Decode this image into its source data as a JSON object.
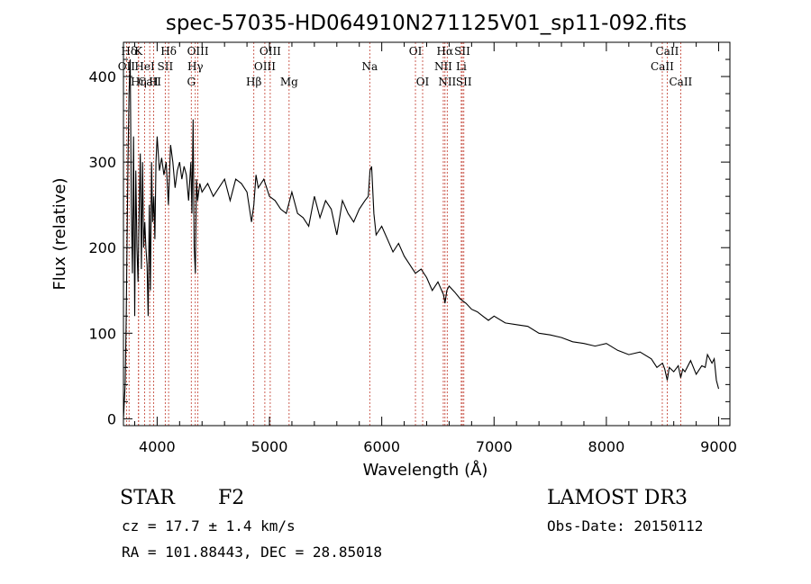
{
  "chart_data": {
    "type": "line",
    "title": "spec-57035-HD064910N271125V01_sp11-092.fits",
    "xlabel": "Wavelength (Å)",
    "ylabel": "Flux (relative)",
    "xlim": [
      3700,
      9100
    ],
    "ylim": [
      -8,
      440
    ],
    "xticks": [
      4000,
      5000,
      6000,
      7000,
      8000,
      9000
    ],
    "yticks": [
      0,
      100,
      200,
      300,
      400
    ],
    "series": [
      {
        "name": "flux",
        "x": [
          3700,
          3715,
          3725,
          3740,
          3750,
          3760,
          3770,
          3780,
          3790,
          3800,
          3810,
          3820,
          3830,
          3840,
          3850,
          3860,
          3870,
          3880,
          3890,
          3900,
          3910,
          3920,
          3930,
          3940,
          3950,
          3960,
          3970,
          3980,
          3990,
          4000,
          4020,
          4040,
          4060,
          4080,
          4100,
          4120,
          4140,
          4160,
          4180,
          4200,
          4220,
          4240,
          4260,
          4280,
          4300,
          4310,
          4320,
          4330,
          4340,
          4350,
          4360,
          4380,
          4400,
          4450,
          4500,
          4550,
          4600,
          4650,
          4700,
          4750,
          4800,
          4840,
          4861,
          4880,
          4900,
          4950,
          5000,
          5050,
          5100,
          5150,
          5200,
          5250,
          5300,
          5350,
          5400,
          5450,
          5500,
          5550,
          5600,
          5650,
          5700,
          5750,
          5800,
          5850,
          5880,
          5895,
          5910,
          5930,
          5950,
          6000,
          6050,
          6100,
          6150,
          6200,
          6250,
          6300,
          6350,
          6400,
          6450,
          6500,
          6550,
          6563,
          6580,
          6600,
          6650,
          6700,
          6750,
          6800,
          6850,
          6900,
          6950,
          7000,
          7100,
          7200,
          7300,
          7400,
          7500,
          7600,
          7700,
          7800,
          7900,
          8000,
          8100,
          8200,
          8300,
          8400,
          8450,
          8500,
          8520,
          8542,
          8560,
          8600,
          8640,
          8662,
          8680,
          8700,
          8750,
          8800,
          8850,
          8880,
          8900,
          8940,
          8960,
          8980,
          9000
        ],
        "y": [
          0,
          40,
          120,
          300,
          380,
          420,
          250,
          170,
          330,
          120,
          290,
          200,
          160,
          240,
          310,
          175,
          300,
          200,
          230,
          200,
          180,
          120,
          250,
          150,
          300,
          230,
          260,
          210,
          300,
          330,
          290,
          305,
          285,
          300,
          250,
          320,
          300,
          270,
          290,
          300,
          280,
          295,
          285,
          255,
          300,
          240,
          350,
          200,
          170,
          280,
          255,
          275,
          265,
          275,
          260,
          270,
          280,
          255,
          280,
          275,
          265,
          230,
          250,
          285,
          270,
          280,
          260,
          255,
          245,
          240,
          265,
          240,
          235,
          225,
          260,
          235,
          255,
          245,
          215,
          255,
          240,
          230,
          245,
          255,
          260,
          290,
          295,
          240,
          215,
          225,
          210,
          195,
          205,
          190,
          180,
          170,
          175,
          165,
          150,
          160,
          145,
          135,
          150,
          155,
          148,
          140,
          135,
          128,
          125,
          120,
          115,
          120,
          112,
          110,
          108,
          100,
          98,
          95,
          90,
          88,
          85,
          88,
          80,
          75,
          78,
          70,
          60,
          65,
          58,
          45,
          60,
          55,
          62,
          48,
          58,
          55,
          68,
          52,
          62,
          60,
          75,
          65,
          70,
          45,
          35
        ]
      }
    ],
    "lines": [
      {
        "label": "Hδ",
        "x": 3750,
        "row": 0
      },
      {
        "label": "K",
        "x": 3834,
        "row": 0
      },
      {
        "label": "Hδ",
        "x": 4102,
        "row": 0
      },
      {
        "label": "OIII",
        "x": 4363,
        "row": 0
      },
      {
        "label": "OIII",
        "x": 5007,
        "row": 0
      },
      {
        "label": "OI",
        "x": 6300,
        "row": 0
      },
      {
        "label": "Hα",
        "x": 6563,
        "row": 0
      },
      {
        "label": "SII",
        "x": 6717,
        "row": 0
      },
      {
        "label": "CaII",
        "x": 8542,
        "row": 0
      },
      {
        "label": "OII",
        "x": 3727,
        "row": 1
      },
      {
        "label": "HeI",
        "x": 3889,
        "row": 1
      },
      {
        "label": "SII",
        "x": 4072,
        "row": 1
      },
      {
        "label": "Hγ",
        "x": 4340,
        "row": 1
      },
      {
        "label": "OIII",
        "x": 4959,
        "row": 1
      },
      {
        "label": "Na",
        "x": 5893,
        "row": 1
      },
      {
        "label": "NII",
        "x": 6548,
        "row": 1
      },
      {
        "label": "Li",
        "x": 6708,
        "row": 1
      },
      {
        "label": "CaII",
        "x": 8498,
        "row": 1
      },
      {
        "label": "CaII",
        "x": 3934,
        "row": 2
      },
      {
        "label": "Hη",
        "x": 3835,
        "row": 2
      },
      {
        "label": "H",
        "x": 3969,
        "row": 2
      },
      {
        "label": "G",
        "x": 4304,
        "row": 2
      },
      {
        "label": "Hβ",
        "x": 4861,
        "row": 2
      },
      {
        "label": "Mg",
        "x": 5175,
        "row": 2
      },
      {
        "label": "OI",
        "x": 6364,
        "row": 2
      },
      {
        "label": "NII",
        "x": 6583,
        "row": 2
      },
      {
        "label": "SII",
        "x": 6731,
        "row": 2
      },
      {
        "label": "CaII",
        "x": 8662,
        "row": 2
      }
    ]
  },
  "footer": {
    "class_label": "STAR",
    "subclass": "F2",
    "survey": "LAMOST DR3",
    "cz": "cz = 17.7 ± 1.4 km/s",
    "obs_date": "Obs-Date: 20150112",
    "coords": "RA = 101.88443, DEC =  28.85018"
  },
  "colors": {
    "line_marker": "#c0392b",
    "spectrum": "#000000",
    "axis": "#000000"
  }
}
